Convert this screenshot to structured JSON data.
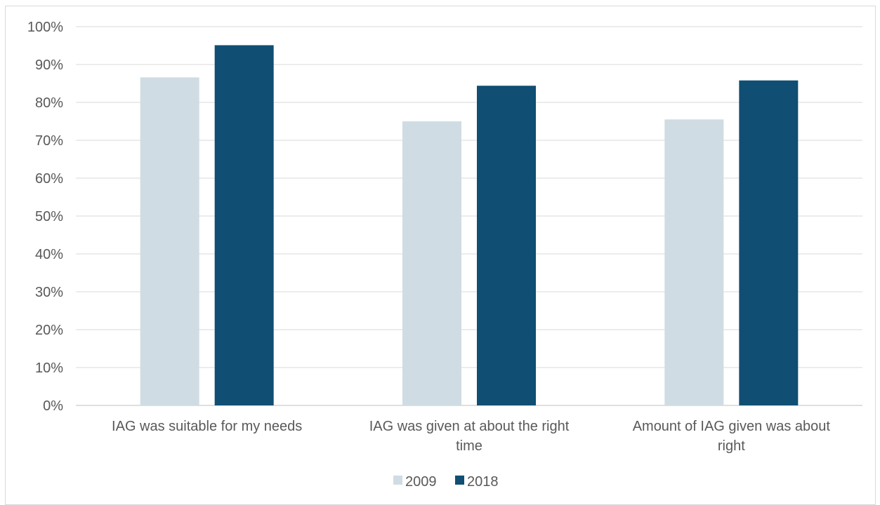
{
  "chart_data": {
    "type": "bar",
    "categories": [
      [
        "IAG was suitable for my needs"
      ],
      [
        "IAG was given at about the right",
        "time"
      ],
      [
        "Amount of IAG given was about",
        "right"
      ]
    ],
    "series": [
      {
        "name": "2009",
        "color": "#cfdce3",
        "values": [
          86.6,
          75.0,
          75.5
        ]
      },
      {
        "name": "2018",
        "color": "#104e73",
        "values": [
          95.1,
          84.4,
          85.8
        ]
      }
    ],
    "ylim": [
      0,
      100
    ],
    "yticks": [
      0,
      10,
      20,
      30,
      40,
      50,
      60,
      70,
      80,
      90,
      100
    ],
    "ytick_suffix": "%",
    "grid": true,
    "legend": "bottom"
  }
}
